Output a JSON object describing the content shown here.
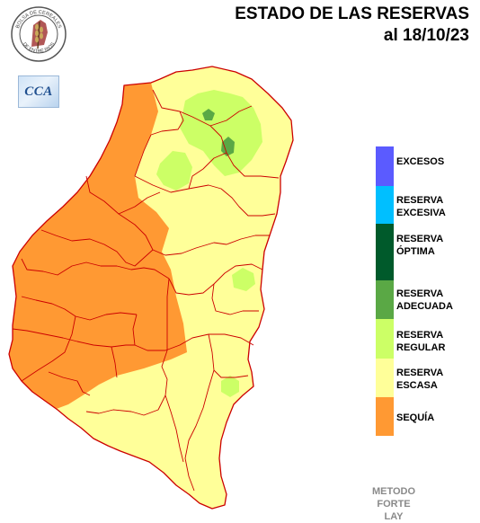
{
  "title": {
    "line1": "ESTADO DE LAS RESERVAS",
    "line2": "al 18/10/23"
  },
  "logo": {
    "top_text": "BOLSA DE CEREALES",
    "bottom_text": "DE ENTRE RIOS",
    "icon": "wheat-seal-icon"
  },
  "cca_logo": {
    "text": "CCA"
  },
  "legend": [
    {
      "label": "EXCESOS",
      "color": "#5b5bff"
    },
    {
      "label": "RESERVA\nEXCESIVA",
      "color": "#00bfff"
    },
    {
      "label": "RESERVA\nÓPTIMA",
      "color": "#005a2b"
    },
    {
      "label": "RESERVA\nADECUADA",
      "color": "#5aa845"
    },
    {
      "label": "RESERVA\nREGULAR",
      "color": "#ccff66"
    },
    {
      "label": "RESERVA\nESCASA",
      "color": "#ffff99"
    },
    {
      "label": "SEQUÍA",
      "color": "#ff9933"
    }
  ],
  "method": "METODO\nFORTE LAY",
  "colors": {
    "border": "#cc0000",
    "escasa": "#ffff99",
    "sequia": "#ff9933",
    "regular": "#ccff66",
    "adecuada": "#5aa845"
  }
}
